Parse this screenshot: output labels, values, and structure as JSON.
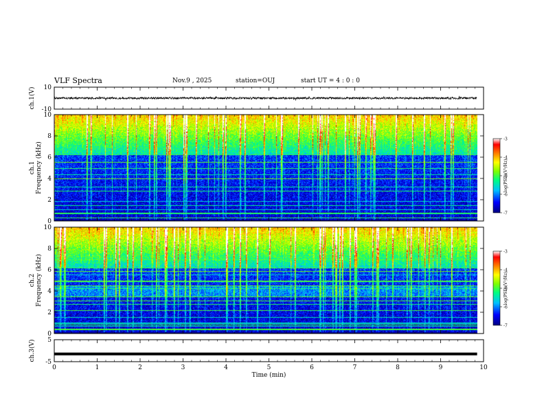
{
  "header": {
    "title": "VLF Spectra",
    "date": "Nov.9  , 2025",
    "station": "station=OUJ",
    "start": "start  UT =   4 : 0  : 0"
  },
  "chart_data": [
    {
      "type": "line",
      "name": "ch.1 waveform",
      "ylabel": "ch.1(V)",
      "ylim": [
        -10,
        10
      ],
      "yticks": [
        "10",
        "-10"
      ],
      "xlim": [
        0,
        10
      ],
      "baseline": 0,
      "noise_amplitude": 1,
      "color": "#000000"
    },
    {
      "type": "heatmap",
      "name": "ch.1 spectrogram",
      "ylabel_channel": "ch.1",
      "ylabel": "Frequency (kHz)",
      "ylim": [
        0,
        10
      ],
      "yticks": [
        "0",
        "2",
        "4",
        "6",
        "8",
        "10"
      ],
      "xlim": [
        0,
        9.85
      ],
      "colorbar": {
        "label": "log(PSD)(V²/Hz)",
        "ticks": [
          "-3",
          "-4",
          "-5",
          "-6",
          "-7"
        ],
        "range": [
          -7,
          -3
        ],
        "colors": [
          "#000080",
          "#0000ff",
          "#00c0ff",
          "#00ff80",
          "#80ff00",
          "#ffff00",
          "#ff8000",
          "#ff0000",
          "#ffffff"
        ]
      }
    },
    {
      "type": "heatmap",
      "name": "ch.2 spectrogram",
      "ylabel_channel": "ch.2",
      "ylabel": "Frequency (kHz)",
      "ylim": [
        0,
        10
      ],
      "yticks": [
        "0",
        "2",
        "4",
        "6",
        "8",
        "10"
      ],
      "xlim": [
        0,
        9.85
      ],
      "colorbar": {
        "label": "log(PSD)(V²/Hz)",
        "ticks": [
          "-3",
          "-4",
          "-5",
          "-6",
          "-7"
        ],
        "range": [
          -7,
          -3
        ]
      }
    },
    {
      "type": "line",
      "name": "ch.3 waveform",
      "ylabel": "ch.3(V)",
      "ylim": [
        -5,
        5
      ],
      "yticks": [
        "5",
        "-5"
      ],
      "xlim": [
        0,
        10
      ],
      "baseline": -1.5,
      "color": "#000000"
    },
    {
      "type": "axis",
      "name": "time axis",
      "xlabel": "Time (min)",
      "xlim": [
        0,
        10
      ],
      "xticks": [
        "0",
        "1",
        "2",
        "3",
        "4",
        "5",
        "6",
        "7",
        "8",
        "9",
        "10"
      ]
    }
  ]
}
